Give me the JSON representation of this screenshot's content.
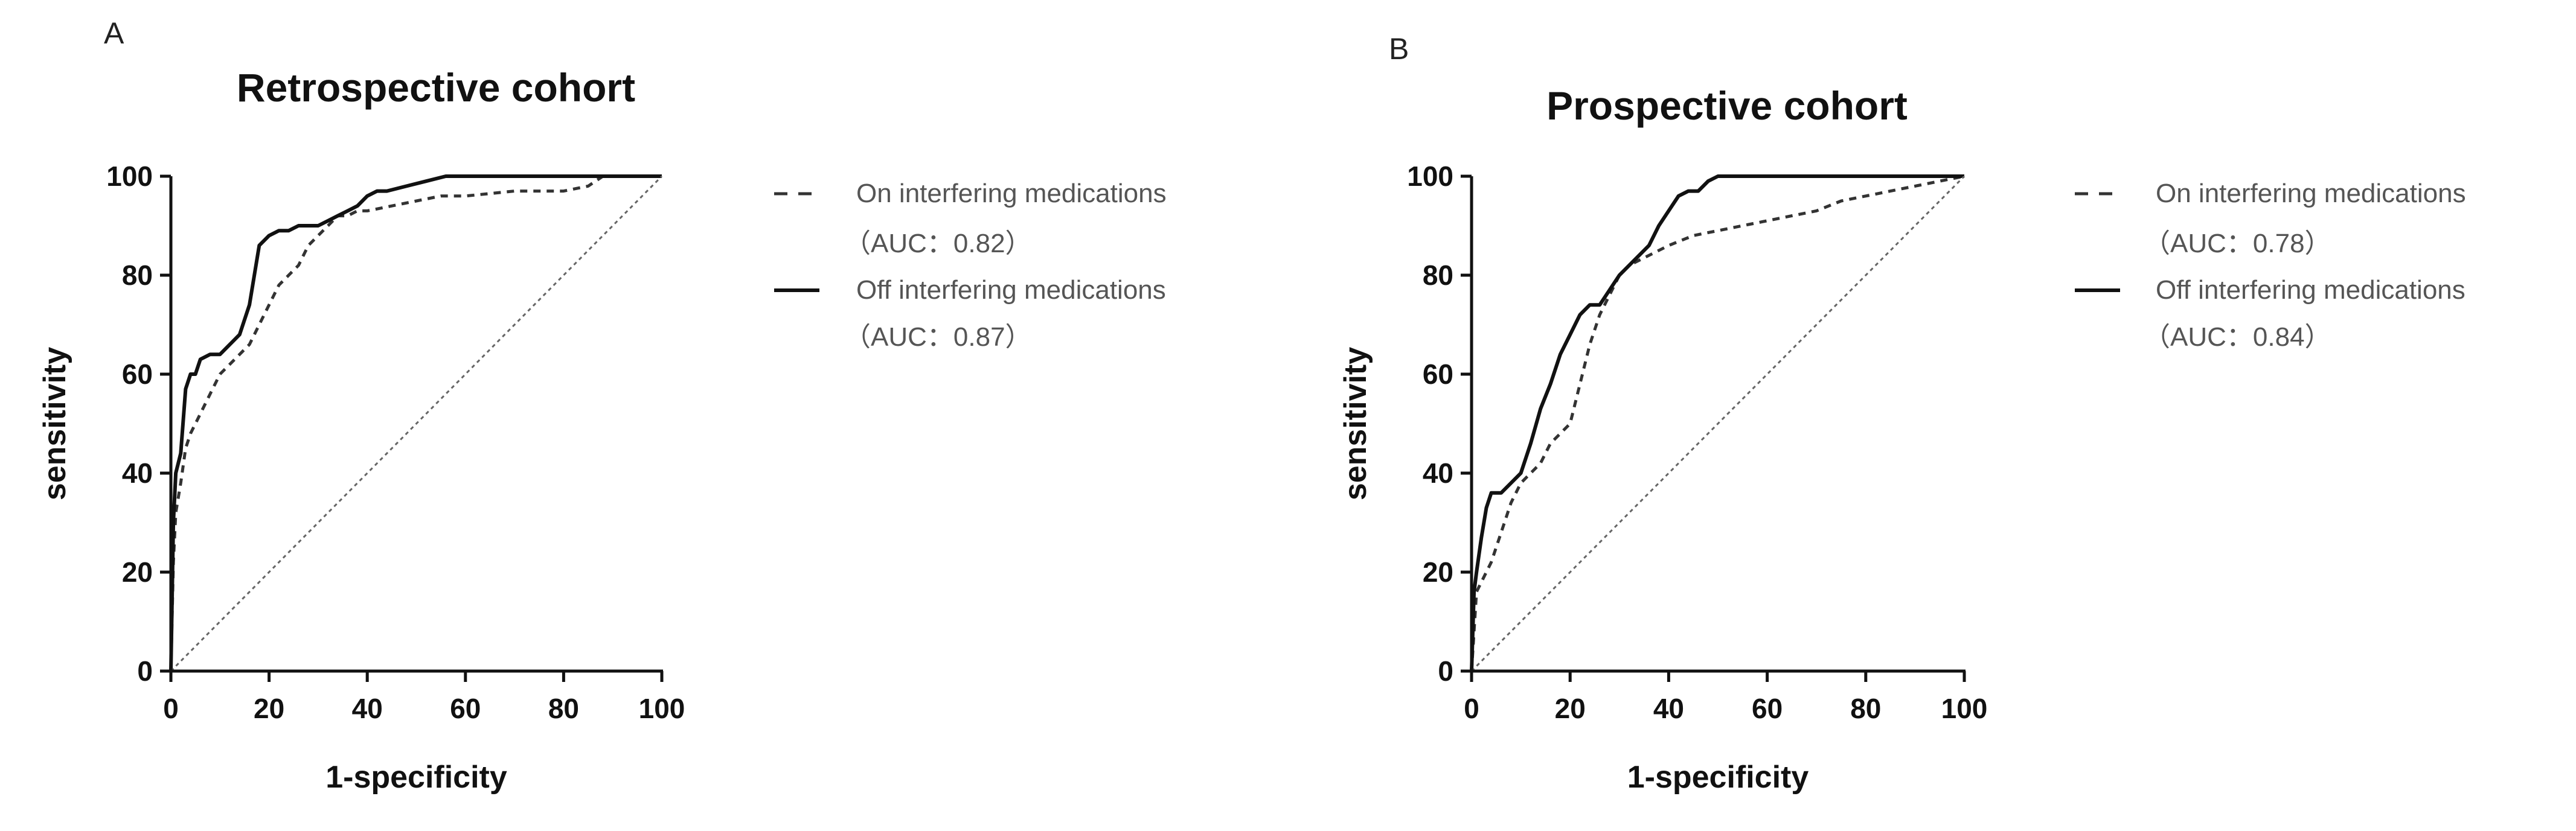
{
  "chart_data": [
    {
      "type": "line",
      "panel_label": "A",
      "title": "Retrospective cohort",
      "xlabel": "1-specificity",
      "ylabel": "sensitivity",
      "xlim": [
        0,
        100
      ],
      "ylim": [
        0,
        100
      ],
      "xticks": [
        "0",
        "20",
        "40",
        "60",
        "80",
        "100"
      ],
      "yticks": [
        "0",
        "20",
        "40",
        "60",
        "80",
        "100"
      ],
      "legend_placement": "right",
      "series": [
        {
          "name": "On interfering medications",
          "auc_label": "（AUC：0.82）",
          "style": "dashed",
          "x": [
            0,
            0.5,
            1,
            2,
            3,
            4,
            6,
            8,
            10,
            12,
            14,
            16,
            18,
            20,
            22,
            24,
            26,
            28,
            30,
            32,
            34,
            36,
            38,
            40,
            45,
            50,
            55,
            60,
            70,
            80,
            85,
            88,
            90,
            95,
            100
          ],
          "y": [
            0,
            22,
            32,
            38,
            45,
            48,
            52,
            56,
            60,
            62,
            64,
            66,
            70,
            74,
            78,
            80,
            82,
            86,
            88,
            90,
            92,
            92,
            93,
            93,
            94,
            95,
            96,
            96,
            97,
            97,
            98,
            100,
            100,
            100,
            100
          ]
        },
        {
          "name": "Off interfering medications",
          "auc_label": "（AUC：0.87）",
          "style": "solid",
          "x": [
            0,
            0.5,
            1,
            2,
            3,
            4,
            5,
            6,
            8,
            10,
            12,
            14,
            16,
            18,
            20,
            22,
            24,
            26,
            28,
            30,
            32,
            34,
            36,
            38,
            40,
            42,
            44,
            48,
            52,
            56,
            60,
            70,
            80,
            90,
            100
          ],
          "y": [
            0,
            30,
            40,
            44,
            57,
            60,
            60,
            63,
            64,
            64,
            66,
            68,
            74,
            86,
            88,
            89,
            89,
            90,
            90,
            90,
            91,
            92,
            93,
            94,
            96,
            97,
            97,
            98,
            99,
            100,
            100,
            100,
            100,
            100,
            100
          ]
        },
        {
          "name": "Reference line",
          "style": "dotted",
          "x": [
            0,
            100
          ],
          "y": [
            0,
            100
          ]
        }
      ]
    },
    {
      "type": "line",
      "panel_label": "B",
      "title": "Prospective cohort",
      "xlabel": "1-specificity",
      "ylabel": "sensitivity",
      "xlim": [
        0,
        100
      ],
      "ylim": [
        0,
        100
      ],
      "xticks": [
        "0",
        "20",
        "40",
        "60",
        "80",
        "100"
      ],
      "yticks": [
        "0",
        "20",
        "40",
        "60",
        "80",
        "100"
      ],
      "legend_placement": "right",
      "series": [
        {
          "name": "On interfering medications",
          "auc_label": "（AUC：0.78）",
          "style": "dashed",
          "x": [
            0,
            1,
            2,
            4,
            6,
            8,
            10,
            12,
            14,
            16,
            18,
            20,
            22,
            24,
            26,
            28,
            30,
            32,
            34,
            36,
            40,
            45,
            50,
            55,
            60,
            65,
            70,
            75,
            80,
            85,
            90,
            95,
            100
          ],
          "y": [
            0,
            16,
            18,
            22,
            28,
            34,
            38,
            40,
            42,
            46,
            48,
            50,
            58,
            66,
            72,
            76,
            80,
            82,
            83,
            84,
            86,
            88,
            89,
            90,
            91,
            92,
            93,
            95,
            96,
            97,
            98,
            99,
            100
          ]
        },
        {
          "name": "Off interfering medications",
          "auc_label": "（AUC：0.84）",
          "style": "solid",
          "x": [
            0,
            0.5,
            1,
            2,
            3,
            4,
            6,
            8,
            10,
            12,
            14,
            16,
            18,
            20,
            22,
            24,
            26,
            28,
            30,
            32,
            34,
            36,
            38,
            40,
            42,
            44,
            46,
            48,
            50,
            60,
            70,
            80,
            90,
            100
          ],
          "y": [
            0,
            16,
            20,
            27,
            33,
            36,
            36,
            38,
            40,
            46,
            53,
            58,
            64,
            68,
            72,
            74,
            74,
            77,
            80,
            82,
            84,
            86,
            90,
            93,
            96,
            97,
            97,
            99,
            100,
            100,
            100,
            100,
            100,
            100
          ]
        },
        {
          "name": "Reference line",
          "style": "dotted",
          "x": [
            0,
            100
          ],
          "y": [
            0,
            100
          ]
        }
      ]
    }
  ]
}
